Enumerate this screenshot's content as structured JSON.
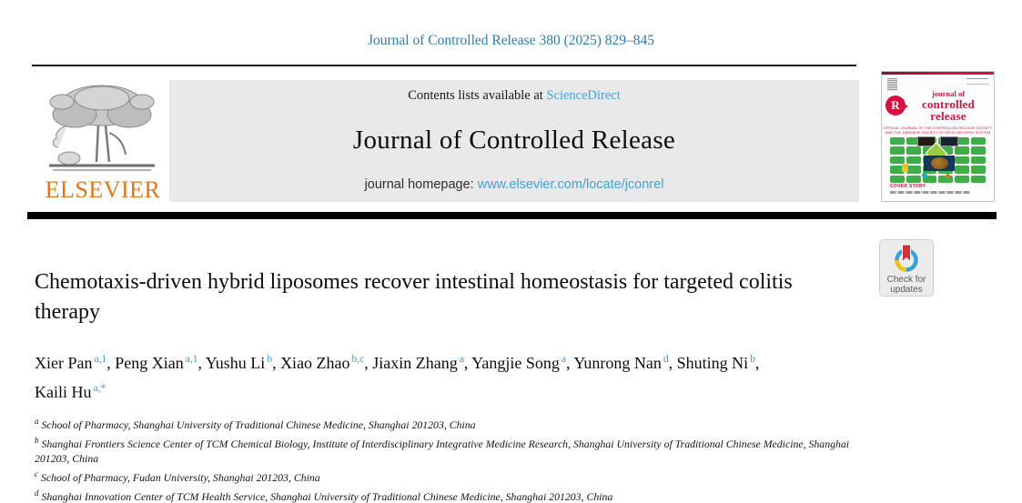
{
  "header": {
    "citation": "Journal of Controlled Release 380 (2025) 829–845"
  },
  "masthead": {
    "contents_prefix": "Contents lists available at ",
    "contents_link": "ScienceDirect",
    "journal_title": "Journal of Controlled Release",
    "homepage_prefix": "journal homepage: ",
    "homepage_link": "www.elsevier.com/locate/jconrel",
    "publisher_wordmark": "ELSEVIER",
    "publisher_logo_icon": "elsevier-tree-icon"
  },
  "cover": {
    "title_line1": "journal of",
    "title_line2": "controlled",
    "title_line3": "release",
    "logo_letter": "R",
    "logo_icon": "controlled-release-society-logo-icon",
    "subtitle_line1": "OFFICIAL JOURNAL OF THE CONTROLLED RELEASE SOCIETY",
    "subtitle_line2": "AND THE JAPANESE SOCIETY OF DRUG DELIVERY SYSTEM",
    "cover_story_label": "COVER STORY"
  },
  "badge": {
    "line1": "Check for",
    "line2": "updates",
    "icon": "crossmark-ribbon-icon"
  },
  "article": {
    "title": "Chemotaxis-driven hybrid liposomes recover intestinal homeostasis for targeted colitis therapy",
    "authors": [
      {
        "name": "Xier Pan",
        "sup": "a,1"
      },
      {
        "name": "Peng Xian",
        "sup": "a,1"
      },
      {
        "name": "Yushu Li",
        "sup": "b"
      },
      {
        "name": "Xiao Zhao",
        "sup": "b,c"
      },
      {
        "name": "Jiaxin Zhang",
        "sup": "a"
      },
      {
        "name": "Yangjie Song",
        "sup": "a"
      },
      {
        "name": "Yunrong Nan",
        "sup": "d"
      },
      {
        "name": "Shuting Ni",
        "sup": "b"
      },
      {
        "name": "Kaili Hu",
        "sup": "a,*"
      }
    ],
    "affiliations": [
      {
        "sup": "a",
        "text": "School of Pharmacy, Shanghai University of Traditional Chinese Medicine, Shanghai 201203, China"
      },
      {
        "sup": "b",
        "text": "Shanghai Frontiers Science Center of TCM Chemical Biology, Institute of Interdisciplinary Integrative Medicine Research, Shanghai University of Traditional Chinese Medicine, Shanghai 201203, China"
      },
      {
        "sup": "c",
        "text": "School of Pharmacy, Fudan University, Shanghai 201203, China"
      },
      {
        "sup": "d",
        "text": "Shanghai Innovation Center of TCM Health Service, Shanghai University of Traditional Chinese Medicine, Shanghai 201203, China"
      }
    ]
  },
  "colors": {
    "citation_blue": "#2c7bb3",
    "link_blue": "#45a2d8",
    "superscript_blue": "#3a9bd5",
    "elsevier_orange": "#df761e",
    "cover_red": "#d5123f",
    "cover_green": "#3fae49",
    "masthead_gray": "#e9e9e9",
    "bar_black": "#000000"
  }
}
